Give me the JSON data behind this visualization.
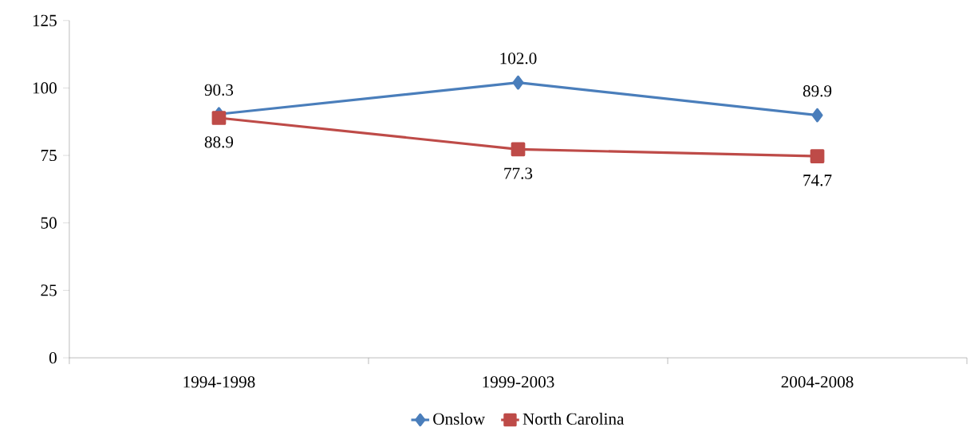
{
  "chart_data": {
    "type": "line",
    "categories": [
      "1994-1998",
      "1999-2003",
      "2004-2008"
    ],
    "series": [
      {
        "name": "Onslow",
        "color": "#4a7ebb",
        "marker": "diamond",
        "values": [
          90.3,
          102.0,
          89.9
        ],
        "value_labels": [
          "90.3",
          "102.0",
          "89.9"
        ]
      },
      {
        "name": "North Carolina",
        "color": "#be4b48",
        "marker": "square",
        "values": [
          88.9,
          77.3,
          74.7
        ],
        "value_labels": [
          "88.9",
          "77.3",
          "74.7"
        ]
      }
    ],
    "ylim": [
      0,
      125
    ],
    "yticks": [
      0,
      25,
      50,
      75,
      100,
      125
    ],
    "grid": false,
    "legend": "bottom"
  }
}
